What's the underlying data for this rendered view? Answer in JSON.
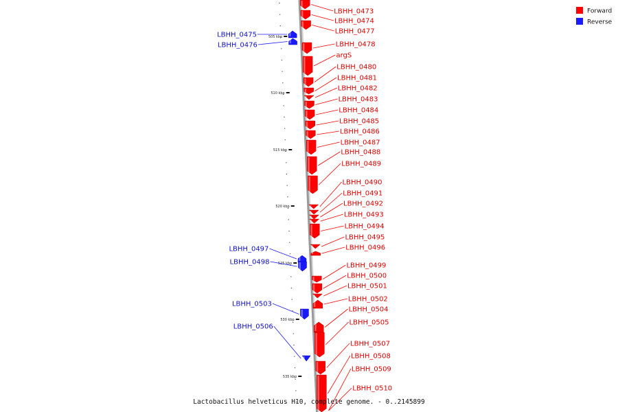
{
  "caption": "Lactobacillus helveticus H10, complete genome. - 0..2145899",
  "colors": {
    "forward": "#ff0000",
    "reverse": "#1a1aff",
    "backbone": "#9a9a9a"
  },
  "legend": [
    {
      "key": "forward",
      "label": "Forward"
    },
    {
      "key": "reverse",
      "label": "Reverse"
    }
  ],
  "ticks": [
    "505 kbp",
    "510 kbp",
    "515 kbp",
    "520 kbp",
    "525 kbp",
    "530 kbp",
    "535 kbp"
  ],
  "genes": [
    {
      "name": "LBHH_0473",
      "strand": "forward"
    },
    {
      "name": "LBHH_0474",
      "strand": "forward"
    },
    {
      "name": "LBHH_0475",
      "strand": "reverse"
    },
    {
      "name": "LBHH_0476",
      "strand": "reverse"
    },
    {
      "name": "LBHH_0477",
      "strand": "forward"
    },
    {
      "name": "LBHH_0478",
      "strand": "forward"
    },
    {
      "name": "argS",
      "strand": "forward"
    },
    {
      "name": "LBHH_0480",
      "strand": "forward"
    },
    {
      "name": "LBHH_0481",
      "strand": "forward"
    },
    {
      "name": "LBHH_0482",
      "strand": "forward"
    },
    {
      "name": "LBHH_0483",
      "strand": "forward"
    },
    {
      "name": "LBHH_0484",
      "strand": "forward"
    },
    {
      "name": "LBHH_0485",
      "strand": "forward"
    },
    {
      "name": "LBHH_0486",
      "strand": "forward"
    },
    {
      "name": "LBHH_0487",
      "strand": "forward"
    },
    {
      "name": "LBHH_0488",
      "strand": "forward"
    },
    {
      "name": "LBHH_0489",
      "strand": "forward"
    },
    {
      "name": "LBHH_0490",
      "strand": "forward"
    },
    {
      "name": "LBHH_0491",
      "strand": "forward"
    },
    {
      "name": "LBHH_0492",
      "strand": "forward"
    },
    {
      "name": "LBHH_0493",
      "strand": "forward"
    },
    {
      "name": "LBHH_0494",
      "strand": "forward"
    },
    {
      "name": "LBHH_0495",
      "strand": "forward"
    },
    {
      "name": "LBHH_0496",
      "strand": "forward"
    },
    {
      "name": "LBHH_0497",
      "strand": "reverse"
    },
    {
      "name": "LBHH_0498",
      "strand": "reverse"
    },
    {
      "name": "LBHH_0499",
      "strand": "forward"
    },
    {
      "name": "LBHH_0500",
      "strand": "forward"
    },
    {
      "name": "LBHH_0501",
      "strand": "forward"
    },
    {
      "name": "LBHH_0502",
      "strand": "forward"
    },
    {
      "name": "LBHH_0503",
      "strand": "reverse"
    },
    {
      "name": "LBHH_0504",
      "strand": "forward"
    },
    {
      "name": "LBHH_0505",
      "strand": "forward"
    },
    {
      "name": "LBHH_0506",
      "strand": "reverse"
    },
    {
      "name": "LBHH_0507",
      "strand": "forward"
    },
    {
      "name": "LBHH_0508",
      "strand": "forward"
    },
    {
      "name": "LBHH_0509",
      "strand": "forward"
    },
    {
      "name": "LBHH_0510",
      "strand": "forward"
    }
  ]
}
